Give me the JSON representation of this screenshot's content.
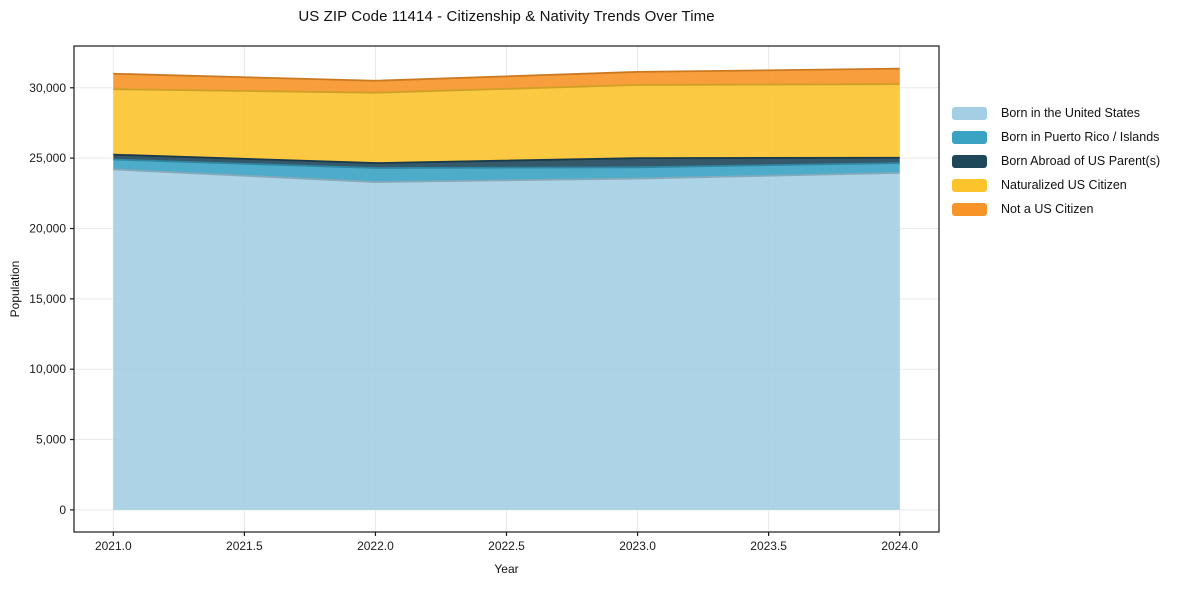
{
  "chart": {
    "title": "US ZIP Code 11414 - Citizenship & Nativity Trends Over Time",
    "xlabel": "Year",
    "ylabel": "Population"
  },
  "chart_data": {
    "type": "area",
    "stacked": true,
    "title": "US ZIP Code 11414 - Citizenship & Nativity Trends Over Time",
    "xlabel": "Year",
    "ylabel": "Population",
    "x": [
      2021,
      2022,
      2023,
      2024
    ],
    "series": [
      {
        "name": "Born in the United States",
        "color": "#a3cee3",
        "values": [
          24200,
          23300,
          23550,
          23950
        ]
      },
      {
        "name": "Born in Puerto Rico / Islands",
        "color": "#3aa3c4",
        "values": [
          700,
          1000,
          800,
          700
        ]
      },
      {
        "name": "Born Abroad of US Parent(s)",
        "color": "#1f475a",
        "values": [
          350,
          350,
          650,
          380
        ]
      },
      {
        "name": "Naturalized US Citizen",
        "color": "#fcc32d",
        "values": [
          4650,
          5000,
          5200,
          5230
        ]
      },
      {
        "name": "Not a US Citizen",
        "color": "#f79428",
        "values": [
          1100,
          850,
          930,
          1100
        ]
      }
    ],
    "stack_totals": [
      31000,
      30500,
      31130,
      31360
    ],
    "xlim": [
      2020.85,
      2024.15
    ],
    "ylim": [
      -1570,
      32970
    ],
    "x_ticks": {
      "values": [
        2021,
        2021.5,
        2022,
        2022.5,
        2023,
        2023.5,
        2024
      ],
      "labels": [
        "2021.0",
        "2021.5",
        "2022.0",
        "2022.5",
        "2023.0",
        "2023.5",
        "2024.0"
      ]
    },
    "y_ticks": {
      "values": [
        0,
        5000,
        10000,
        15000,
        20000,
        25000,
        30000
      ],
      "labels": [
        "0",
        "5,000",
        "10,000",
        "15,000",
        "20,000",
        "25,000",
        "30,000"
      ]
    },
    "grid": true,
    "grid_color": "#e9e9e9",
    "spine_color": "#1a1a1a",
    "tick_label_color": "#1a1a1a",
    "legend_position": "right-outside"
  }
}
